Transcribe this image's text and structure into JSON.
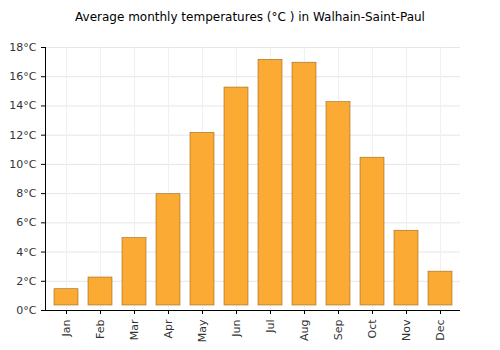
{
  "chart_data": {
    "type": "bar",
    "title": "Average monthly temperatures (°C ) in Walhain-Saint-Paul",
    "categories": [
      "Jan",
      "Feb",
      "Mar",
      "Apr",
      "May",
      "Jun",
      "Jul",
      "Aug",
      "Sep",
      "Oct",
      "Nov",
      "Dec"
    ],
    "values": [
      1.8,
      2.6,
      5.3,
      8.3,
      12.5,
      15.6,
      17.5,
      17.3,
      14.6,
      10.8,
      5.8,
      3.0
    ],
    "color": "#fbaa33",
    "ylim": [
      0,
      18
    ],
    "yticks": [
      {
        "value": 0,
        "label": "0°C"
      },
      {
        "value": 2,
        "label": "2°C"
      },
      {
        "value": 4,
        "label": "4°C"
      },
      {
        "value": 6,
        "label": "6°C"
      },
      {
        "value": 8,
        "label": "8°C"
      },
      {
        "value": 10,
        "label": "10°C"
      },
      {
        "value": 12,
        "label": "12°C"
      },
      {
        "value": 14,
        "label": "14°C"
      },
      {
        "value": 16,
        "label": "16°C"
      },
      {
        "value": 18,
        "label": "18°C"
      }
    ],
    "grid": true
  }
}
